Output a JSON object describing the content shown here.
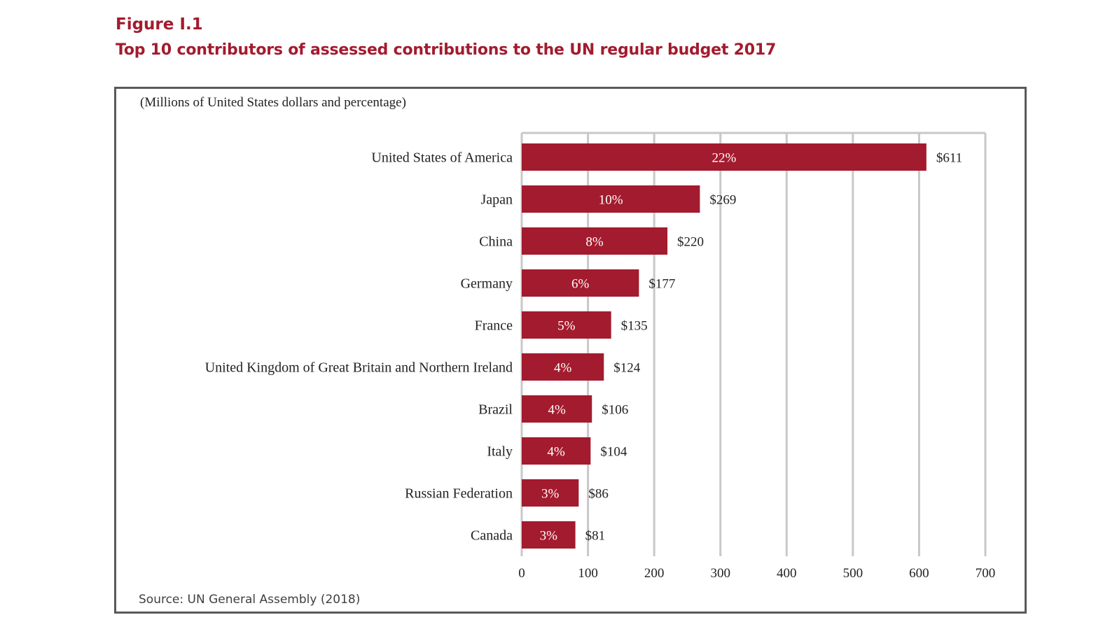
{
  "figure": {
    "label": "Figure I.1",
    "title": "Top 10 contributors of assessed contributions to the UN regular budget 2017",
    "source": "Source: UN General Assembly (2018)"
  },
  "chart_data": {
    "type": "bar",
    "orientation": "horizontal",
    "subtitle": "(Millions of United States dollars and percentage)",
    "categories": [
      "United States of America",
      "Japan",
      "China",
      "Germany",
      "France",
      "United Kingdom of Great Britain and Northern Ireland",
      "Brazil",
      "Italy",
      "Russian Federation",
      "Canada"
    ],
    "values": [
      611,
      269,
      220,
      177,
      135,
      124,
      106,
      104,
      86,
      81
    ],
    "value_labels": [
      "$611",
      "$269",
      "$220",
      "$177",
      "$135",
      "$124",
      "$106",
      "$104",
      "$86",
      "$81"
    ],
    "percentage_labels": [
      "22%",
      "10%",
      "8%",
      "6%",
      "5%",
      "4%",
      "4%",
      "4%",
      "3%",
      "3%"
    ],
    "xlim": [
      0,
      700
    ],
    "xticks": [
      0,
      100,
      200,
      300,
      400,
      500,
      600,
      700
    ],
    "xtick_labels": [
      "0",
      "100",
      "200",
      "300",
      "400",
      "500",
      "600",
      "700"
    ],
    "grid": "vertical",
    "bar_color": "#a31b2e",
    "grid_color": "#c8c8c8"
  }
}
